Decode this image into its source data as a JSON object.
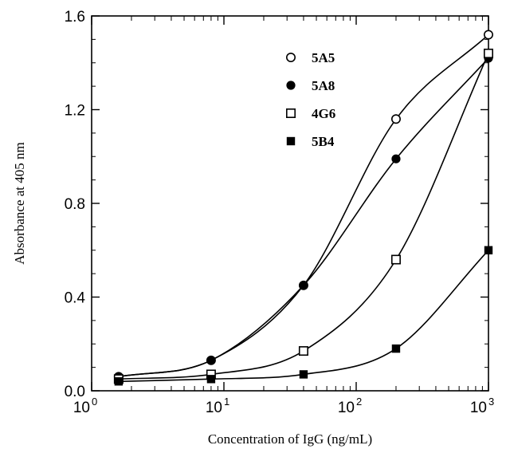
{
  "chart_data": {
    "type": "scatter",
    "xscale": "log",
    "xlabel": "Concentration of IgG (ng/mL)",
    "ylabel": "Absorbance at 405 nm",
    "xlim": [
      1,
      1000
    ],
    "ylim": [
      0,
      1.6
    ],
    "x_ticks": [
      {
        "value": 1,
        "base": "10",
        "exp": "0"
      },
      {
        "value": 10,
        "base": "10",
        "exp": "1"
      },
      {
        "value": 100,
        "base": "10",
        "exp": "2"
      },
      {
        "value": 1000,
        "base": "10",
        "exp": "3"
      }
    ],
    "y_ticks": [
      {
        "value": 0,
        "label": "0.0"
      },
      {
        "value": 0.4,
        "label": "0.4"
      },
      {
        "value": 0.8,
        "label": "0.8"
      },
      {
        "value": 1.2,
        "label": "1.2"
      },
      {
        "value": 1.6,
        "label": "1.6"
      }
    ],
    "grid": false,
    "legend_position": "top-center",
    "series": [
      {
        "name": "5A5",
        "marker": "open-circle",
        "x": [
          1.6,
          8,
          40,
          200,
          1000
        ],
        "y": [
          0.06,
          0.13,
          0.45,
          1.16,
          1.52
        ]
      },
      {
        "name": "5A8",
        "marker": "filled-circle",
        "x": [
          1.6,
          8,
          40,
          200,
          1000
        ],
        "y": [
          0.06,
          0.13,
          0.45,
          0.99,
          1.42
        ]
      },
      {
        "name": "4G6",
        "marker": "open-square",
        "x": [
          1.6,
          8,
          40,
          200,
          1000
        ],
        "y": [
          0.05,
          0.07,
          0.17,
          0.56,
          1.44
        ]
      },
      {
        "name": "5B4",
        "marker": "filled-square",
        "x": [
          1.6,
          8,
          40,
          200,
          1000
        ],
        "y": [
          0.04,
          0.05,
          0.07,
          0.18,
          0.6
        ]
      }
    ]
  }
}
